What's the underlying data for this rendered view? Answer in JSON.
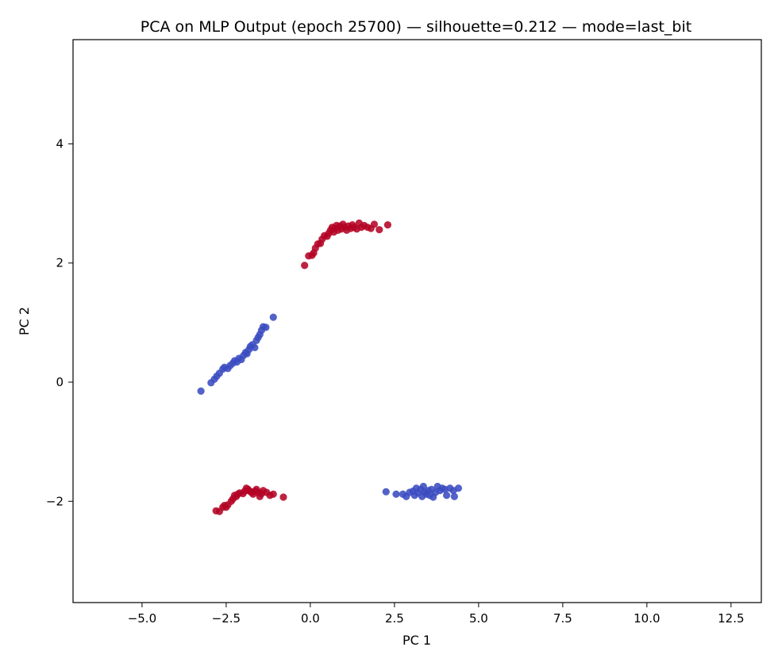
{
  "chart_data": {
    "type": "scatter",
    "title": "PCA on MLP Output (epoch 25700) — silhouette=0.212 — mode=last_bit",
    "xlabel": "PC 1",
    "ylabel": "PC 2",
    "xlim": [
      -7.05,
      13.4
    ],
    "ylim": [
      -3.7,
      5.75
    ],
    "xticks": [
      -5.0,
      -2.5,
      0.0,
      2.5,
      5.0,
      7.5,
      10.0,
      12.5
    ],
    "xtick_labels": [
      "−5.0",
      "−2.5",
      "0.0",
      "2.5",
      "5.0",
      "7.5",
      "10.0",
      "12.5"
    ],
    "yticks": [
      -2,
      0,
      2,
      4
    ],
    "ytick_labels": [
      "−2",
      "0",
      "2",
      "4"
    ],
    "grid": false,
    "legend": null,
    "series": [
      {
        "color": "#b40426",
        "points": [
          [
            -0.17,
            1.96
          ],
          [
            -0.05,
            2.12
          ],
          [
            0.05,
            2.13
          ],
          [
            0.1,
            2.17
          ],
          [
            0.15,
            2.25
          ],
          [
            0.22,
            2.32
          ],
          [
            0.3,
            2.33
          ],
          [
            0.35,
            2.4
          ],
          [
            0.42,
            2.46
          ],
          [
            0.5,
            2.45
          ],
          [
            0.55,
            2.5
          ],
          [
            0.6,
            2.55
          ],
          [
            0.65,
            2.6
          ],
          [
            0.7,
            2.52
          ],
          [
            0.72,
            2.58
          ],
          [
            0.78,
            2.63
          ],
          [
            0.82,
            2.55
          ],
          [
            0.88,
            2.62
          ],
          [
            0.92,
            2.57
          ],
          [
            0.97,
            2.65
          ],
          [
            1.02,
            2.6
          ],
          [
            1.08,
            2.55
          ],
          [
            1.13,
            2.62
          ],
          [
            1.2,
            2.58
          ],
          [
            1.25,
            2.64
          ],
          [
            1.3,
            2.6
          ],
          [
            1.38,
            2.57
          ],
          [
            1.45,
            2.67
          ],
          [
            1.52,
            2.6
          ],
          [
            1.6,
            2.63
          ],
          [
            1.7,
            2.6
          ],
          [
            1.8,
            2.58
          ],
          [
            1.9,
            2.65
          ],
          [
            2.05,
            2.56
          ],
          [
            2.3,
            2.64
          ]
        ]
      },
      {
        "color": "#3b4cc0",
        "points": [
          [
            -3.25,
            -0.15
          ],
          [
            -2.95,
            -0.01
          ],
          [
            -2.85,
            0.05
          ],
          [
            -2.78,
            0.1
          ],
          [
            -2.7,
            0.15
          ],
          [
            -2.6,
            0.22
          ],
          [
            -2.55,
            0.25
          ],
          [
            -2.45,
            0.23
          ],
          [
            -2.38,
            0.28
          ],
          [
            -2.3,
            0.32
          ],
          [
            -2.25,
            0.36
          ],
          [
            -2.18,
            0.34
          ],
          [
            -2.12,
            0.4
          ],
          [
            -2.05,
            0.38
          ],
          [
            -1.98,
            0.45
          ],
          [
            -1.92,
            0.5
          ],
          [
            -1.88,
            0.48
          ],
          [
            -1.82,
            0.55
          ],
          [
            -1.78,
            0.6
          ],
          [
            -1.72,
            0.63
          ],
          [
            -1.65,
            0.58
          ],
          [
            -1.6,
            0.7
          ],
          [
            -1.55,
            0.75
          ],
          [
            -1.5,
            0.8
          ],
          [
            -1.45,
            0.87
          ],
          [
            -1.4,
            0.93
          ],
          [
            -1.32,
            0.92
          ],
          [
            -1.1,
            1.09
          ]
        ]
      },
      {
        "color": "#b40426",
        "points": [
          [
            -2.8,
            -2.16
          ],
          [
            -2.7,
            -2.17
          ],
          [
            -2.6,
            -2.1
          ],
          [
            -2.55,
            -2.07
          ],
          [
            -2.5,
            -2.1
          ],
          [
            -2.45,
            -2.06
          ],
          [
            -2.35,
            -2.0
          ],
          [
            -2.3,
            -1.96
          ],
          [
            -2.25,
            -1.9
          ],
          [
            -2.2,
            -1.92
          ],
          [
            -2.15,
            -1.88
          ],
          [
            -2.1,
            -1.86
          ],
          [
            -2.0,
            -1.87
          ],
          [
            -1.95,
            -1.83
          ],
          [
            -1.9,
            -1.78
          ],
          [
            -1.85,
            -1.8
          ],
          [
            -1.8,
            -1.83
          ],
          [
            -1.75,
            -1.85
          ],
          [
            -1.7,
            -1.88
          ],
          [
            -1.65,
            -1.83
          ],
          [
            -1.6,
            -1.8
          ],
          [
            -1.55,
            -1.85
          ],
          [
            -1.5,
            -1.92
          ],
          [
            -1.45,
            -1.87
          ],
          [
            -1.4,
            -1.82
          ],
          [
            -1.3,
            -1.85
          ],
          [
            -1.2,
            -1.9
          ],
          [
            -1.1,
            -1.88
          ],
          [
            -0.8,
            -1.93
          ]
        ]
      },
      {
        "color": "#3b4cc0",
        "points": [
          [
            2.25,
            -1.84
          ],
          [
            2.55,
            -1.88
          ],
          [
            2.75,
            -1.88
          ],
          [
            2.85,
            -1.92
          ],
          [
            2.95,
            -1.85
          ],
          [
            3.05,
            -1.83
          ],
          [
            3.1,
            -1.9
          ],
          [
            3.15,
            -1.78
          ],
          [
            3.2,
            -1.86
          ],
          [
            3.28,
            -1.8
          ],
          [
            3.32,
            -1.92
          ],
          [
            3.36,
            -1.75
          ],
          [
            3.4,
            -1.85
          ],
          [
            3.45,
            -1.88
          ],
          [
            3.5,
            -1.82
          ],
          [
            3.55,
            -1.9
          ],
          [
            3.6,
            -1.8
          ],
          [
            3.65,
            -1.93
          ],
          [
            3.72,
            -1.85
          ],
          [
            3.78,
            -1.75
          ],
          [
            3.85,
            -1.82
          ],
          [
            3.92,
            -1.78
          ],
          [
            4.0,
            -1.8
          ],
          [
            4.05,
            -1.9
          ],
          [
            4.15,
            -1.78
          ],
          [
            4.25,
            -1.82
          ],
          [
            4.28,
            -1.92
          ],
          [
            4.4,
            -1.78
          ]
        ]
      }
    ]
  }
}
